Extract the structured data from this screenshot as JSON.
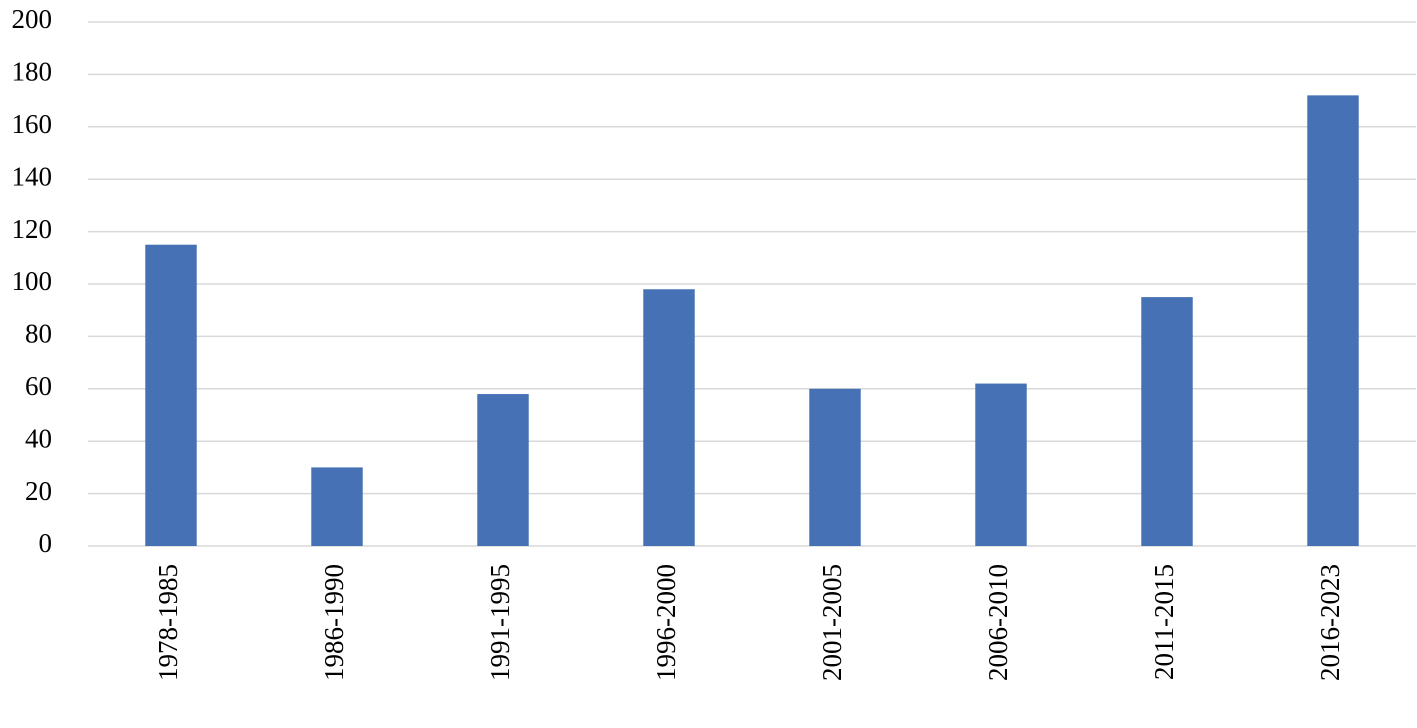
{
  "chart_data": {
    "type": "bar",
    "categories": [
      "1978-1985",
      "1986-1990",
      "1991-1995",
      "1996-2000",
      "2001-2005",
      "2006-2010",
      "2011-2015",
      "2016-2023"
    ],
    "values": [
      115,
      30,
      58,
      98,
      60,
      62,
      95,
      172
    ],
    "color": "#4672b5",
    "ylim": [
      0,
      200
    ],
    "yticks": [
      0,
      20,
      40,
      60,
      80,
      100,
      120,
      140,
      160,
      180,
      200
    ],
    "grid": true
  }
}
